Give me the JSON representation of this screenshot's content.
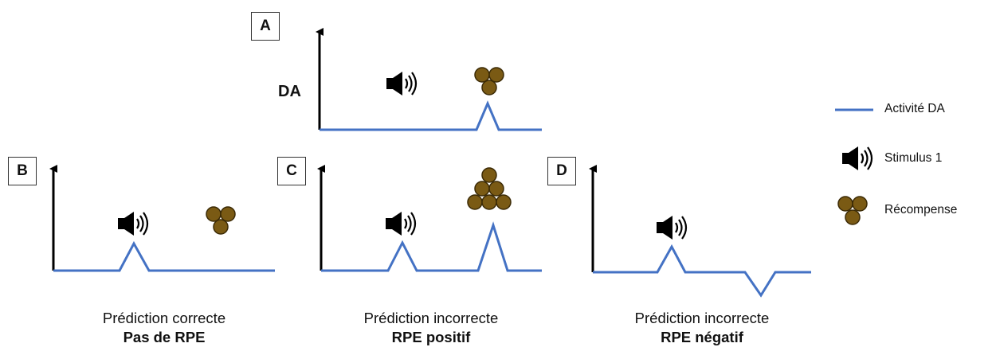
{
  "panels": {
    "a": {
      "label": "A",
      "ylabel": "DA"
    },
    "b": {
      "label": "B",
      "caption_line1": "Prédiction correcte",
      "caption_line2": "Pas de RPE"
    },
    "c": {
      "label": "C",
      "caption_line1": "Prédiction incorrecte",
      "caption_line2": "RPE positif"
    },
    "d": {
      "label": "D",
      "caption_line1": "Prédiction incorrecte",
      "caption_line2": "RPE négatif"
    }
  },
  "legend": {
    "activity": "Activité DA",
    "stimulus": "Stimulus 1",
    "reward": "Récompense"
  },
  "colors": {
    "trace": "#4472C4",
    "reward": "#7A5A14",
    "axis": "#000000"
  },
  "icons": {
    "stimulus": "speaker-icon",
    "reward": "reward-balls-icon"
  }
}
